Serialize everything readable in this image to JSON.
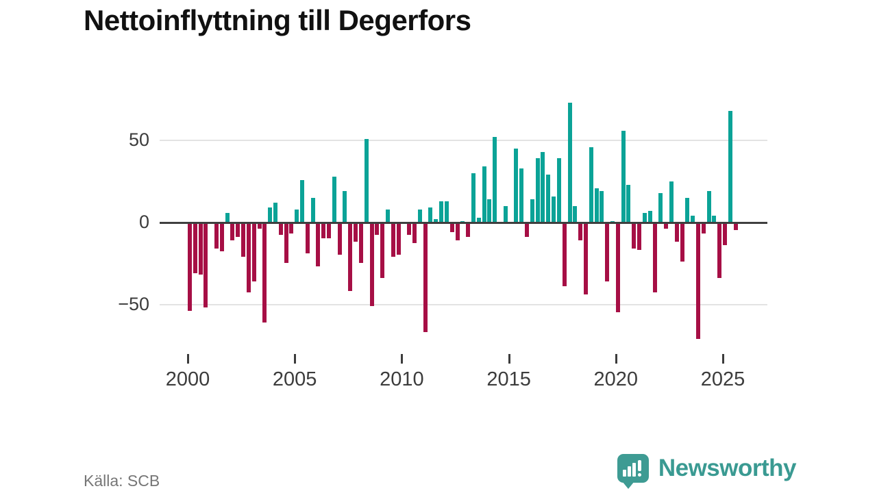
{
  "title": "Nettoinflyttning till Degerfors",
  "source": "Källa: SCB",
  "brand": {
    "name": "Newsworthy",
    "icon": "speech-bubble-bar-chart-icon"
  },
  "colors": {
    "positive": "#0ba397",
    "negative": "#a60f45",
    "grid": "#e3e3e3",
    "zero_axis": "#3f3f3f",
    "tick_text": "#3c3c3c",
    "muted_text": "#767676",
    "brand_teal": "#3a9a92"
  },
  "chart_data": {
    "type": "bar",
    "title": "Nettoinflyttning till Degerfors",
    "xlabel": "",
    "ylabel": "",
    "x_tick_years": [
      2000,
      2005,
      2010,
      2015,
      2020,
      2025
    ],
    "y_ticks": [
      {
        "value": 50,
        "label": "50"
      },
      {
        "value": 0,
        "label": "0"
      },
      {
        "value": -50,
        "label": "−50"
      }
    ],
    "ylim": [
      -78,
      82
    ],
    "grid": "horizontal",
    "legend": "none",
    "frequency": "quarterly",
    "start": "2000-Q1",
    "end": "2025-Q3",
    "values": [
      -53,
      -30,
      -31,
      -51,
      0,
      -15,
      -17,
      6,
      -10,
      -8,
      -20,
      -42,
      -35,
      -3,
      -60,
      9,
      12,
      -7,
      -24,
      -6,
      8,
      26,
      -18,
      15,
      -26,
      -9,
      -9,
      28,
      -19,
      19,
      -41,
      -11,
      -24,
      51,
      -50,
      -7,
      -33,
      8,
      -20,
      -19,
      0,
      -7,
      -12,
      8,
      -66,
      9,
      2,
      13,
      13,
      -5,
      -10,
      1,
      -8,
      30,
      3,
      34,
      14,
      52,
      0,
      10,
      0,
      45,
      33,
      -8,
      14,
      39,
      43,
      29,
      16,
      39,
      -38,
      73,
      10,
      -10,
      -43,
      46,
      21,
      19,
      -35,
      1,
      -54,
      56,
      23,
      -15,
      -16,
      6,
      7,
      -42,
      18,
      -3,
      25,
      -11,
      -23,
      15,
      4,
      -70,
      -6,
      19,
      4,
      -33,
      -13,
      68,
      -4
    ]
  }
}
